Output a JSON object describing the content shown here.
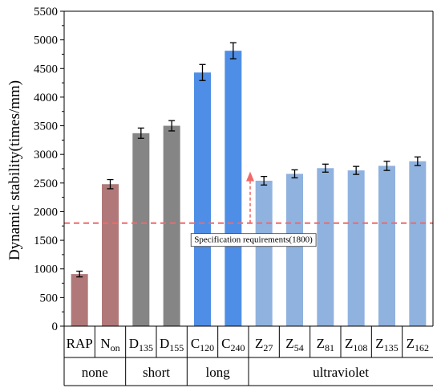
{
  "chart_data": {
    "type": "bar",
    "ylabel": "Dynamic stability(times/mm)",
    "ylim": [
      0,
      5500
    ],
    "yticks": [
      0,
      500,
      1000,
      1500,
      2000,
      2500,
      3000,
      3500,
      4000,
      4500,
      5000,
      5500
    ],
    "grid": false,
    "categories": [
      {
        "base": "RAP",
        "sub": ""
      },
      {
        "base": "N",
        "sub": "on"
      },
      {
        "base": "D",
        "sub": "135"
      },
      {
        "base": "D",
        "sub": "155"
      },
      {
        "base": "C",
        "sub": "120"
      },
      {
        "base": "C",
        "sub": "240"
      },
      {
        "base": "Z",
        "sub": "27"
      },
      {
        "base": "Z",
        "sub": "54"
      },
      {
        "base": "Z",
        "sub": "81"
      },
      {
        "base": "Z",
        "sub": "108"
      },
      {
        "base": "Z",
        "sub": "135"
      },
      {
        "base": "Z",
        "sub": "162"
      }
    ],
    "values": [
      910,
      2480,
      3370,
      3500,
      4430,
      4810,
      2540,
      2660,
      2760,
      2720,
      2800,
      2880
    ],
    "errors": [
      50,
      80,
      90,
      90,
      140,
      140,
      75,
      70,
      70,
      70,
      80,
      75
    ],
    "bar_colors": [
      "#b07878",
      "#b07878",
      "#858585",
      "#858585",
      "#4f8ee6",
      "#4f8ee6",
      "#8fb2df",
      "#8fb2df",
      "#8fb2df",
      "#8fb2df",
      "#8fb2df",
      "#8fb2df"
    ],
    "groups": [
      {
        "label": "none",
        "start": 0,
        "end": 1
      },
      {
        "label": "short",
        "start": 2,
        "end": 3
      },
      {
        "label": "long",
        "start": 4,
        "end": 5
      },
      {
        "label": "ultraviolet",
        "start": 6,
        "end": 11
      }
    ],
    "reference_line": {
      "value": 1800,
      "label": "Specification requirements(1800)",
      "color": "#f06a6a"
    },
    "arrow": {
      "from": 1800,
      "to": 2700,
      "color": "#f06a6a"
    }
  }
}
